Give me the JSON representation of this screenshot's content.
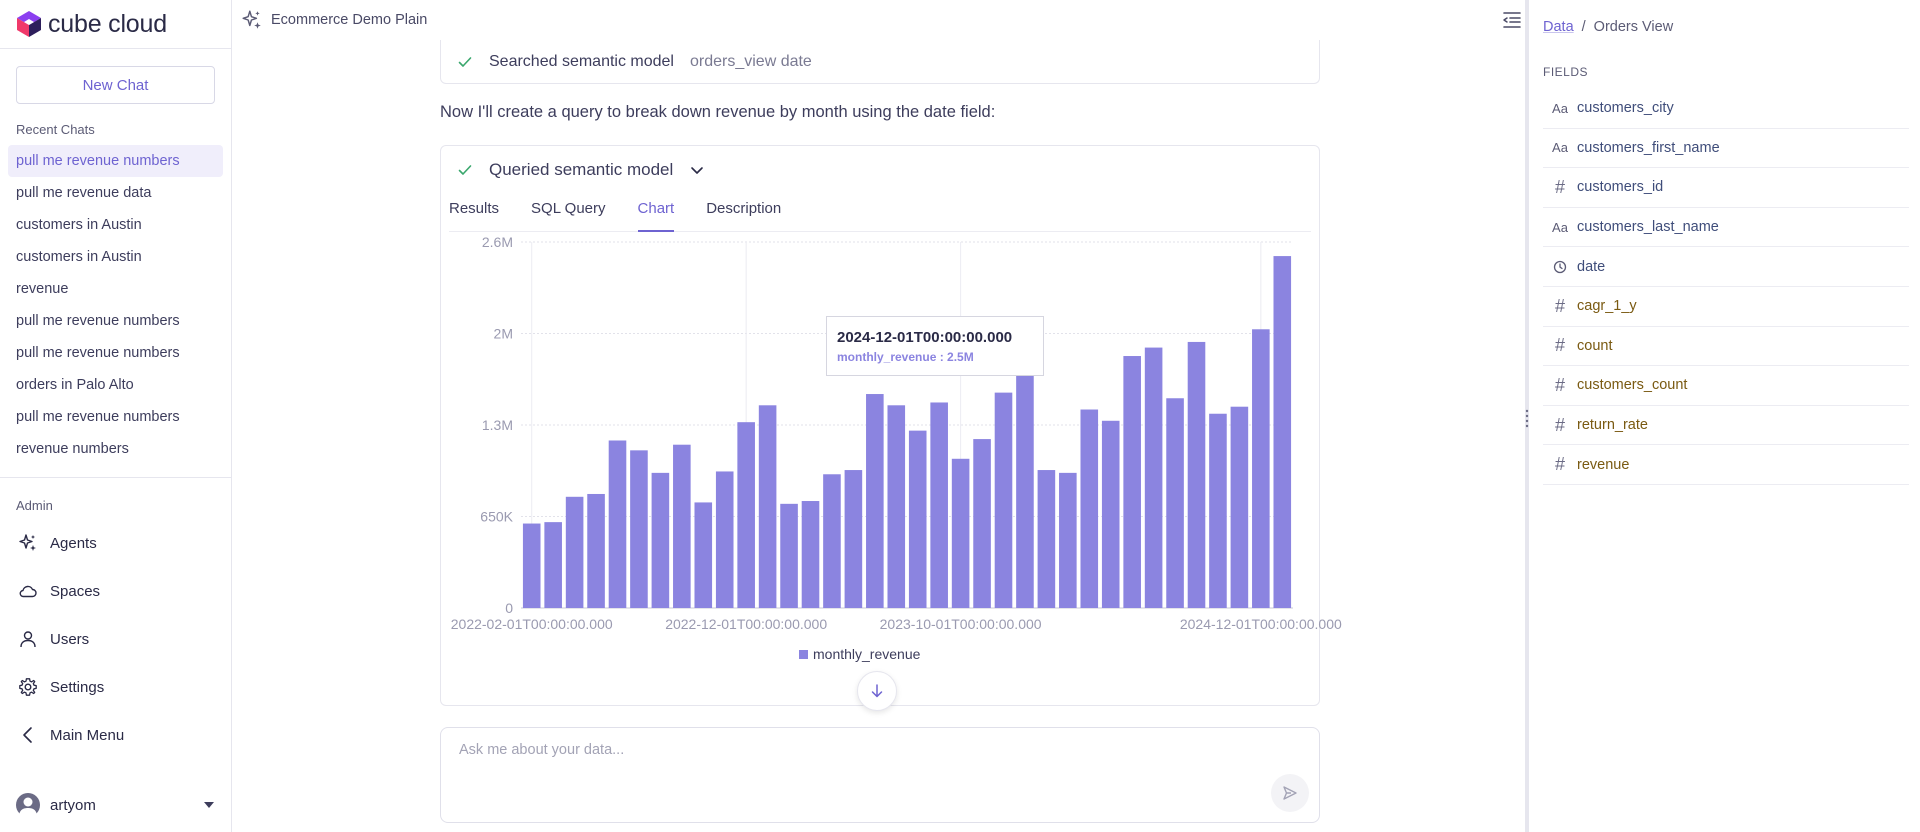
{
  "brand": {
    "name": "cube cloud"
  },
  "sidebar": {
    "new_chat_label": "New Chat",
    "recent_label": "Recent Chats",
    "recent_chats": [
      "pull me revenue numbers",
      "pull me revenue data",
      "customers in Austin",
      "customers in Austin",
      "revenue",
      "pull me revenue numbers",
      "pull me revenue numbers",
      "orders in Palo Alto",
      "pull me revenue numbers",
      "revenue numbers"
    ],
    "admin_label": "Admin",
    "nav": {
      "agents": "Agents",
      "spaces": "Spaces",
      "users": "Users",
      "settings": "Settings",
      "main_menu": "Main Menu"
    },
    "user": {
      "name": "artyom"
    }
  },
  "header": {
    "title": "Ecommerce Demo Plain"
  },
  "conversation": {
    "step1": {
      "label": "Searched semantic model",
      "detail": "orders_view date"
    },
    "message": "Now I'll create a query to break down revenue by month using the date field:",
    "step2": {
      "label": "Queried semantic model"
    },
    "tabs": [
      "Results",
      "SQL Query",
      "Chart",
      "Description"
    ],
    "active_tab": "Chart",
    "tooltip": {
      "title": "2024-12-01T00:00:00.000",
      "series": "monthly_revenue",
      "value": "2.5M"
    }
  },
  "chart_data": {
    "type": "bar",
    "x_start": "2022-02-01",
    "x_interval": "month",
    "xticks": [
      "2022-02-01T00:00:00.000",
      "2022-12-01T00:00:00.000",
      "2023-10-01T00:00:00.000",
      "2024-12-01T00:00:00.000"
    ],
    "yticks": [
      "0",
      "650K",
      "1.3M",
      "2M",
      "2.6M"
    ],
    "ylim": [
      0,
      2600000
    ],
    "grid": true,
    "legend_position": "bottom",
    "series": [
      {
        "name": "monthly_revenue",
        "color": "#8b84e0",
        "values": [
          600000,
          610000,
          790000,
          810000,
          1190000,
          1120000,
          960000,
          1160000,
          750000,
          970000,
          1320000,
          1440000,
          740000,
          760000,
          950000,
          980000,
          1520000,
          1440000,
          1260000,
          1460000,
          1060000,
          1200000,
          1530000,
          1830000,
          980000,
          960000,
          1410000,
          1330000,
          1790000,
          1850000,
          1490000,
          1890000,
          1380000,
          1430000,
          1980000,
          2500000
        ]
      }
    ]
  },
  "input": {
    "placeholder": "Ask me about your data..."
  },
  "right_panel": {
    "breadcrumb": {
      "root": "Data",
      "separator": "/",
      "current": "Orders View"
    },
    "fields_label": "FIELDS",
    "fields": [
      {
        "name": "customers_city",
        "kind": "dimension",
        "icon": "text-type-icon",
        "glyph": "Aa"
      },
      {
        "name": "customers_first_name",
        "kind": "dimension",
        "icon": "text-type-icon",
        "glyph": "Aa"
      },
      {
        "name": "customers_id",
        "kind": "dimension",
        "icon": "number-type-icon",
        "glyph": "#"
      },
      {
        "name": "customers_last_name",
        "kind": "dimension",
        "icon": "text-type-icon",
        "glyph": "Aa"
      },
      {
        "name": "date",
        "kind": "dimension",
        "icon": "clock-icon",
        "glyph": ""
      },
      {
        "name": "cagr_1_y",
        "kind": "measure",
        "icon": "number-type-icon",
        "glyph": "#"
      },
      {
        "name": "count",
        "kind": "measure",
        "icon": "number-type-icon",
        "glyph": "#"
      },
      {
        "name": "customers_count",
        "kind": "measure",
        "icon": "number-type-icon",
        "glyph": "#"
      },
      {
        "name": "return_rate",
        "kind": "measure",
        "icon": "number-type-icon",
        "glyph": "#"
      },
      {
        "name": "revenue",
        "kind": "measure",
        "icon": "number-type-icon",
        "glyph": "#"
      }
    ]
  },
  "colors": {
    "accent": "#6e63d1",
    "bar": "#8b84e0",
    "dimension_text": "#3f4d7a",
    "measure_text": "#7a5a12"
  }
}
